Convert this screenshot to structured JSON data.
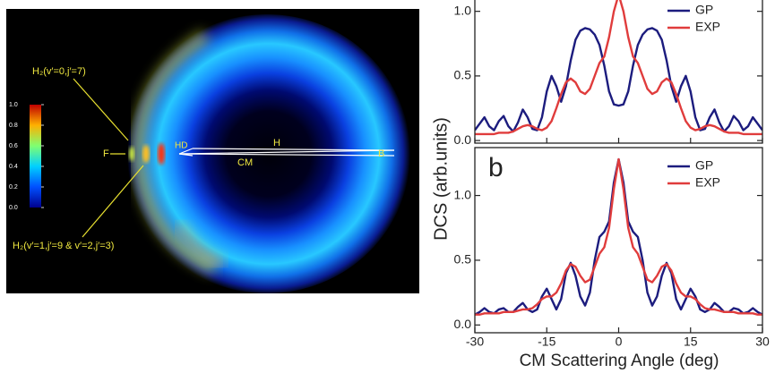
{
  "image": {
    "labels": {
      "state1": "H₂(v′=0,j′=7)",
      "state2": "H₂(v′=1,j′=9 & v′=2,j′=3)",
      "f": "F",
      "hd": "HD",
      "h": "H",
      "cm": "CM",
      "b": "B"
    },
    "colorbar_ticks": [
      {
        "value": 0,
        "label": "0.0"
      },
      {
        "value": 0.2,
        "label": "0.2"
      },
      {
        "value": 0.4,
        "label": "0.4"
      },
      {
        "value": 0.6,
        "label": "0.6"
      },
      {
        "value": 0.8,
        "label": "0.8"
      },
      {
        "value": 1,
        "label": "1.0"
      }
    ]
  },
  "figure": {
    "ylabel": "DCS (arb.units)",
    "xlabel": "CM Scattering Angle (deg)"
  },
  "chart_data": [
    {
      "type": "line",
      "x": [
        -30,
        -29,
        -28,
        -27,
        -26,
        -25,
        -24,
        -23,
        -22,
        -21,
        -20,
        -19,
        -18,
        -17,
        -16,
        -15,
        -14,
        -13,
        -12,
        -11,
        -10,
        -9,
        -8,
        -7,
        -6,
        -5,
        -4,
        -3,
        -2,
        -1,
        0,
        1,
        2,
        3,
        4,
        5,
        6,
        7,
        8,
        9,
        10,
        11,
        12,
        13,
        14,
        15,
        16,
        17,
        18,
        19,
        20,
        21,
        22,
        23,
        24,
        25,
        26,
        27,
        28,
        29,
        30
      ],
      "series": [
        {
          "name": "GP",
          "color": "#1c1c7e",
          "values": [
            0.08,
            0.13,
            0.18,
            0.11,
            0.08,
            0.15,
            0.19,
            0.11,
            0.07,
            0.14,
            0.24,
            0.18,
            0.09,
            0.08,
            0.18,
            0.38,
            0.5,
            0.42,
            0.3,
            0.42,
            0.62,
            0.78,
            0.85,
            0.87,
            0.86,
            0.82,
            0.74,
            0.58,
            0.38,
            0.28,
            0.27,
            0.28,
            0.38,
            0.58,
            0.74,
            0.82,
            0.86,
            0.87,
            0.85,
            0.78,
            0.62,
            0.42,
            0.3,
            0.42,
            0.5,
            0.38,
            0.18,
            0.08,
            0.09,
            0.18,
            0.24,
            0.14,
            0.07,
            0.11,
            0.19,
            0.15,
            0.08,
            0.11,
            0.18,
            0.13,
            0.08
          ]
        },
        {
          "name": "EXP",
          "color": "#e03c3c",
          "values": [
            0.05,
            0.05,
            0.05,
            0.05,
            0.05,
            0.06,
            0.06,
            0.06,
            0.07,
            0.09,
            0.11,
            0.12,
            0.11,
            0.09,
            0.08,
            0.1,
            0.15,
            0.25,
            0.36,
            0.45,
            0.48,
            0.45,
            0.38,
            0.36,
            0.4,
            0.5,
            0.6,
            0.65,
            0.8,
            1.0,
            1.13,
            1.0,
            0.8,
            0.65,
            0.6,
            0.5,
            0.4,
            0.36,
            0.38,
            0.45,
            0.48,
            0.45,
            0.36,
            0.25,
            0.15,
            0.1,
            0.08,
            0.09,
            0.11,
            0.12,
            0.11,
            0.09,
            0.07,
            0.06,
            0.06,
            0.06,
            0.05,
            0.05,
            0.05,
            0.05,
            0.05
          ]
        }
      ],
      "xlim": [
        -30,
        30
      ],
      "xticks": [
        -30,
        -15,
        0,
        15,
        30
      ],
      "ylim": [
        -0.02,
        1.15
      ],
      "yticks": [
        {
          "value": 0,
          "label": "0.0"
        },
        {
          "value": 0.5,
          "label": "0.5"
        },
        {
          "value": 1,
          "label": "1.0"
        }
      ]
    },
    {
      "type": "line",
      "panel_label": "b",
      "x": [
        -30,
        -29,
        -28,
        -27,
        -26,
        -25,
        -24,
        -23,
        -22,
        -21,
        -20,
        -19,
        -18,
        -17,
        -16,
        -15,
        -14,
        -13,
        -12,
        -11,
        -10,
        -9,
        -8,
        -7,
        -6,
        -5,
        -4,
        -3,
        -2,
        -1,
        0,
        1,
        2,
        3,
        4,
        5,
        6,
        7,
        8,
        9,
        10,
        11,
        12,
        13,
        14,
        15,
        16,
        17,
        18,
        19,
        20,
        21,
        22,
        23,
        24,
        25,
        26,
        27,
        28,
        29,
        30
      ],
      "series": [
        {
          "name": "GP",
          "color": "#1c1c7e",
          "values": [
            0.08,
            0.1,
            0.13,
            0.1,
            0.09,
            0.12,
            0.13,
            0.1,
            0.1,
            0.14,
            0.17,
            0.12,
            0.1,
            0.12,
            0.22,
            0.28,
            0.2,
            0.12,
            0.2,
            0.4,
            0.48,
            0.38,
            0.22,
            0.15,
            0.25,
            0.5,
            0.68,
            0.72,
            0.8,
            1.1,
            1.28,
            1.1,
            0.8,
            0.72,
            0.68,
            0.5,
            0.25,
            0.15,
            0.22,
            0.38,
            0.48,
            0.4,
            0.2,
            0.12,
            0.2,
            0.28,
            0.22,
            0.12,
            0.1,
            0.12,
            0.17,
            0.14,
            0.1,
            0.1,
            0.13,
            0.12,
            0.09,
            0.1,
            0.13,
            0.1,
            0.08
          ]
        },
        {
          "name": "EXP",
          "color": "#e03c3c",
          "values": [
            0.08,
            0.08,
            0.09,
            0.09,
            0.09,
            0.09,
            0.1,
            0.1,
            0.1,
            0.11,
            0.12,
            0.12,
            0.13,
            0.16,
            0.2,
            0.22,
            0.22,
            0.25,
            0.32,
            0.42,
            0.47,
            0.45,
            0.38,
            0.33,
            0.35,
            0.45,
            0.55,
            0.6,
            0.75,
            1.05,
            1.28,
            1.05,
            0.75,
            0.6,
            0.55,
            0.45,
            0.35,
            0.33,
            0.38,
            0.45,
            0.47,
            0.42,
            0.32,
            0.25,
            0.22,
            0.22,
            0.2,
            0.16,
            0.13,
            0.12,
            0.12,
            0.11,
            0.1,
            0.1,
            0.1,
            0.09,
            0.09,
            0.09,
            0.09,
            0.08,
            0.08
          ]
        }
      ],
      "xlim": [
        -30,
        30
      ],
      "xticks": [
        -30,
        -15,
        0,
        15,
        30
      ],
      "ylim": [
        -0.06,
        1.37
      ],
      "yticks": [
        {
          "value": 0,
          "label": "0.0"
        },
        {
          "value": 0.5,
          "label": "0.5"
        },
        {
          "value": 1,
          "label": "1.0"
        }
      ]
    }
  ]
}
